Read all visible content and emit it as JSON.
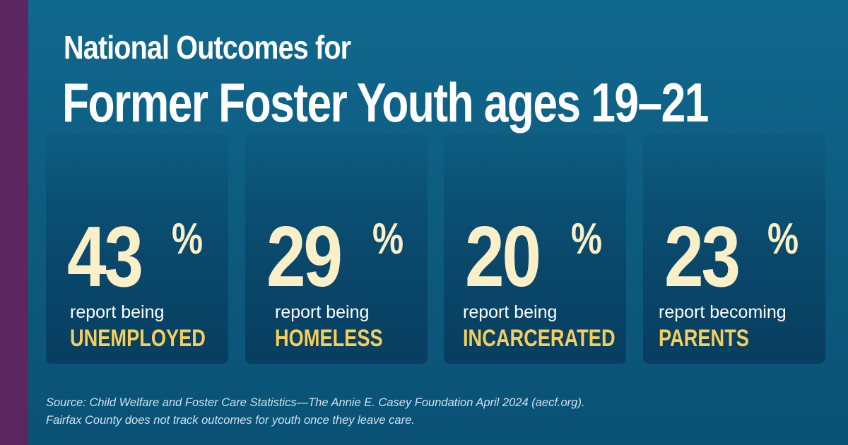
{
  "colors": {
    "background": "#0d5d80",
    "side_bar": "#5c2660",
    "stat_number": "#fbefc8",
    "outcome_label": "#f6cf5a",
    "title": "#ffffff"
  },
  "title": {
    "line1": "National Outcomes for",
    "line2": "Former Foster Youth ages 19–21"
  },
  "stats": [
    {
      "value": "43",
      "unit": "%",
      "report": "report being",
      "outcome": "UNEMPLOYED"
    },
    {
      "value": "29",
      "unit": "%",
      "report": "report being",
      "outcome": "HOMELESS"
    },
    {
      "value": "20",
      "unit": "%",
      "report": "report being",
      "outcome": "INCARCERATED"
    },
    {
      "value": "23",
      "unit": "%",
      "report": "report becoming",
      "outcome": "PARENTS"
    }
  ],
  "source": {
    "line1": "Source: Child Welfare and Foster Care Statistics—The Annie E. Casey Foundation April 2024 (aecf.org).",
    "line2": "Fairfax County does not track outcomes for youth once they leave care."
  }
}
